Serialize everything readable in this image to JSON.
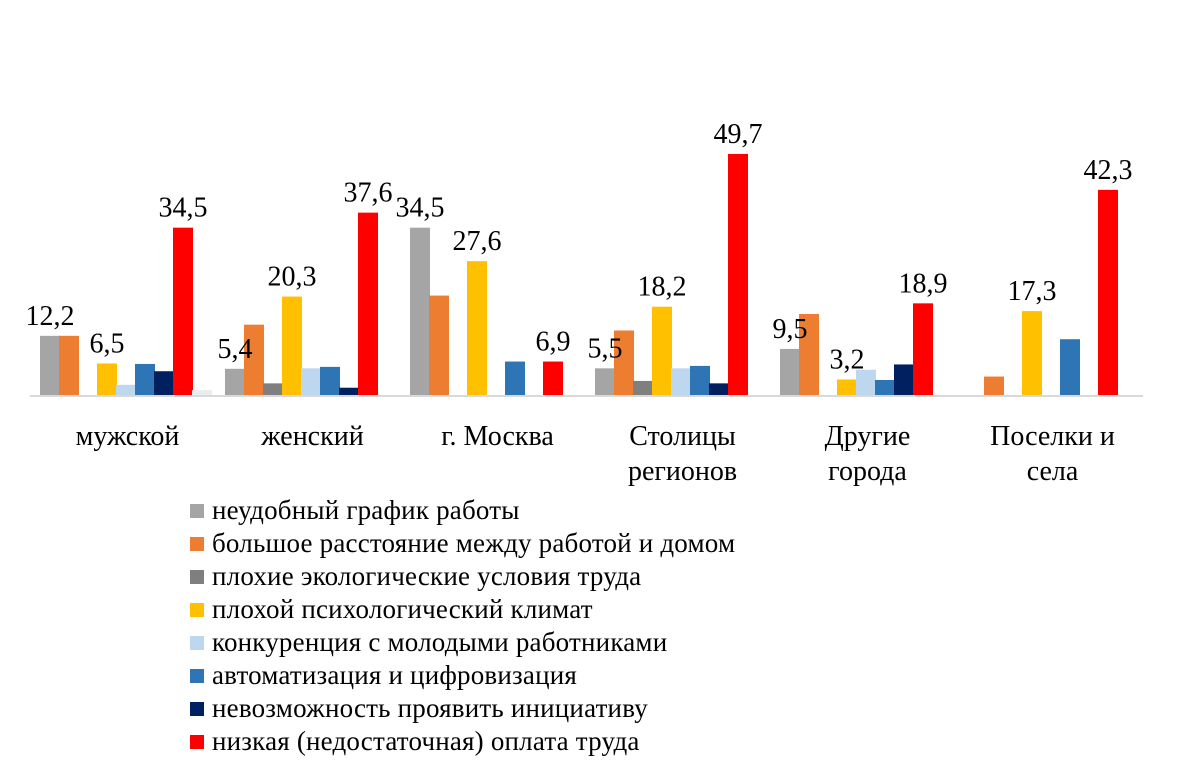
{
  "chart_data": {
    "type": "bar",
    "title": "",
    "xlabel": "",
    "ylabel": "",
    "ylim": [
      0,
      52
    ],
    "grid": false,
    "legend_position": "bottom",
    "categories": [
      [
        "мужской"
      ],
      [
        "женский"
      ],
      [
        "г. Москва"
      ],
      [
        "Столицы",
        "регионов"
      ],
      [
        "Другие",
        "города"
      ],
      [
        "Поселки и",
        "села"
      ]
    ],
    "series": [
      {
        "name": "неудобный график работы",
        "color": "#a5a5a5",
        "values": [
          12.2,
          5.4,
          34.5,
          5.5,
          9.5,
          0
        ]
      },
      {
        "name": "большое расстояние между работой и домом",
        "color": "#ed7d31",
        "values": [
          12.2,
          14.5,
          20.5,
          13.3,
          16.7,
          3.8
        ]
      },
      {
        "name": "плохие экологические условия труда",
        "color": "#7f7f7f",
        "values": [
          0,
          2.4,
          0,
          2.9,
          0,
          0
        ]
      },
      {
        "name": "плохой психологический климат",
        "color": "#ffc000",
        "values": [
          6.5,
          20.3,
          27.6,
          18.2,
          3.2,
          17.3
        ]
      },
      {
        "name": "конкуренция с молодыми работниками",
        "color": "#bdd7ee",
        "values": [
          2.1,
          5.5,
          0,
          5.5,
          5.2,
          0
        ]
      },
      {
        "name": "автоматизация и цифровизация",
        "color": "#2e75b6",
        "values": [
          6.4,
          5.8,
          6.9,
          6.0,
          3.1,
          11.5
        ]
      },
      {
        "name": "невозможность проявить инициативу",
        "color": "#002060",
        "values": [
          4.9,
          1.5,
          0,
          2.4,
          6.3,
          0
        ]
      },
      {
        "name": "низкая (недостаточная) оплата труда",
        "color": "#ff0000",
        "values": [
          34.5,
          37.6,
          6.9,
          49.7,
          18.9,
          42.3
        ]
      }
    ],
    "extra_marks": [
      {
        "category_index": 0,
        "series_index": 7,
        "slot": 8,
        "value": 1.0,
        "color": "#ececec"
      }
    ],
    "data_labels": [
      {
        "category_index": 0,
        "series_index": 0,
        "text": "12,2"
      },
      {
        "category_index": 0,
        "series_index": 3,
        "text": "6,5"
      },
      {
        "category_index": 0,
        "series_index": 7,
        "text": "34,5"
      },
      {
        "category_index": 1,
        "series_index": 0,
        "text": "5,4"
      },
      {
        "category_index": 1,
        "series_index": 3,
        "text": "20,3"
      },
      {
        "category_index": 1,
        "series_index": 7,
        "text": "37,6"
      },
      {
        "category_index": 2,
        "series_index": 0,
        "text": "34,5"
      },
      {
        "category_index": 2,
        "series_index": 3,
        "text": "27,6"
      },
      {
        "category_index": 2,
        "series_index": 7,
        "text": "6,9"
      },
      {
        "category_index": 3,
        "series_index": 0,
        "text": "5,5"
      },
      {
        "category_index": 3,
        "series_index": 3,
        "text": "18,2"
      },
      {
        "category_index": 3,
        "series_index": 7,
        "text": "49,7"
      },
      {
        "category_index": 4,
        "series_index": 0,
        "text": "9,5"
      },
      {
        "category_index": 4,
        "series_index": 3,
        "text": "3,2"
      },
      {
        "category_index": 4,
        "series_index": 7,
        "text": "18,9"
      },
      {
        "category_index": 5,
        "series_index": 3,
        "text": "17,3"
      },
      {
        "category_index": 5,
        "series_index": 7,
        "text": "42,3"
      }
    ]
  }
}
